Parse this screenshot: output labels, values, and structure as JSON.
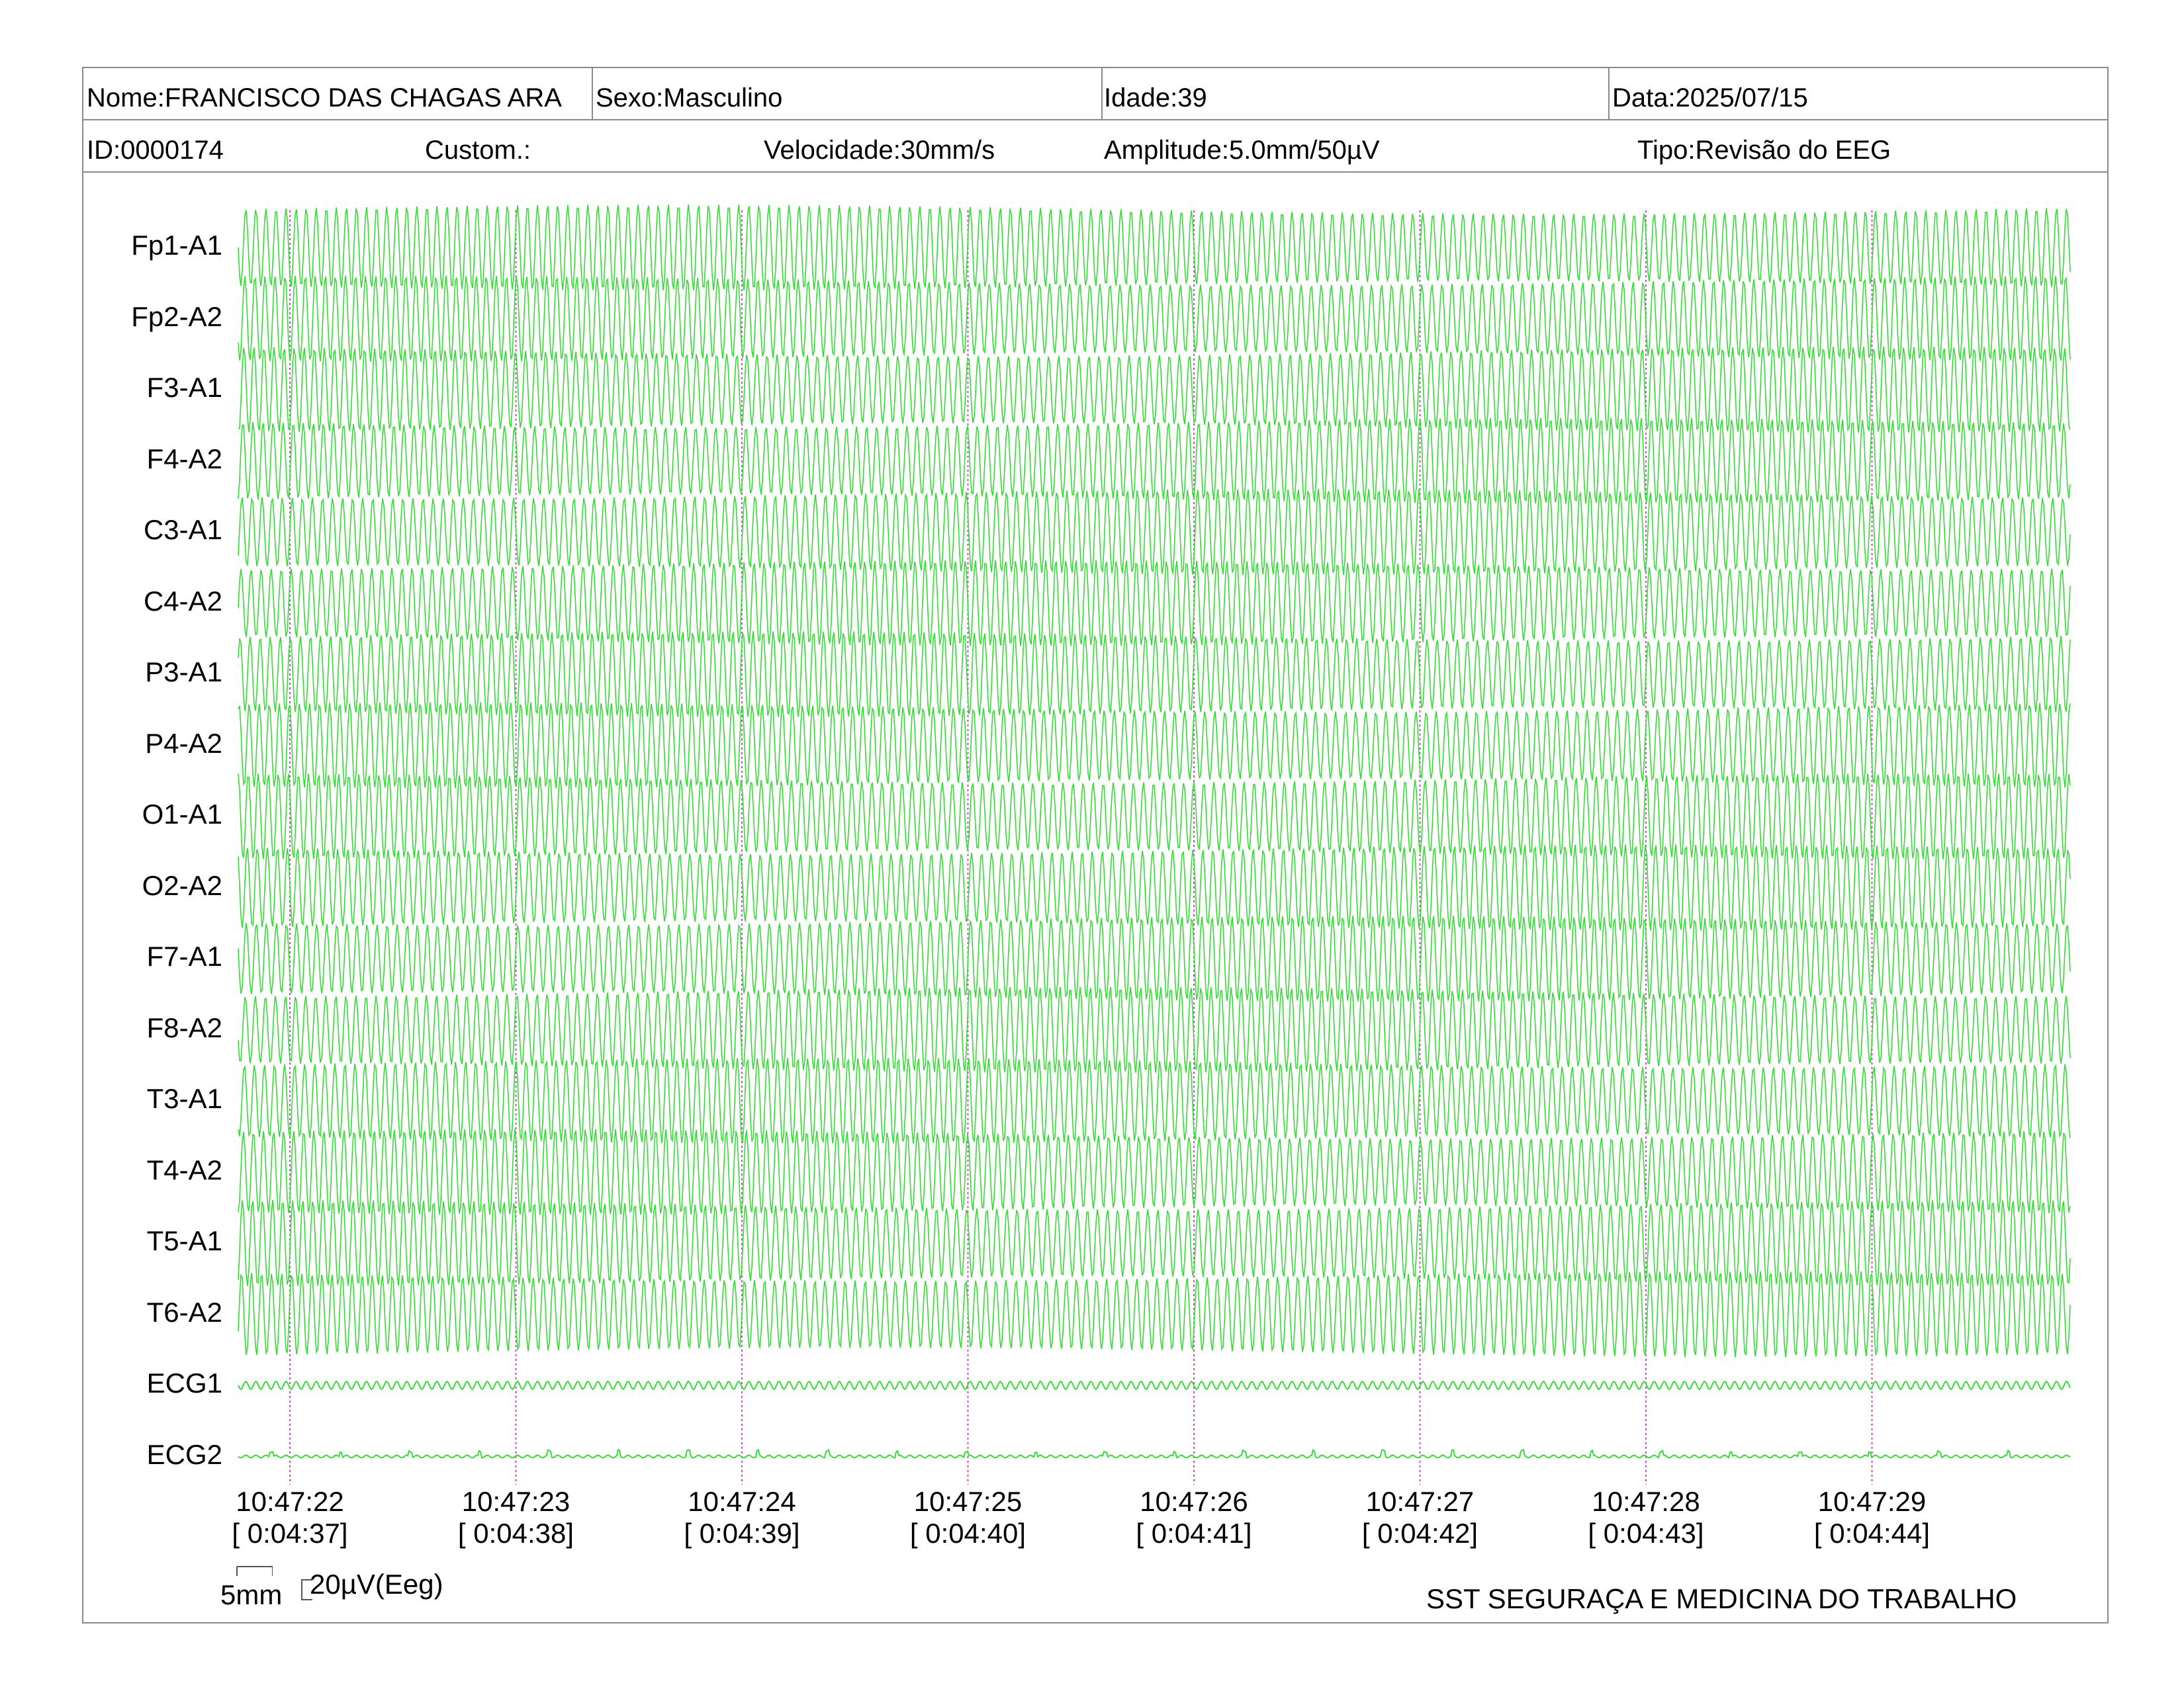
{
  "header": {
    "row1": {
      "nome": "Nome:FRANCISCO DAS CHAGAS ARA",
      "sexo": "Sexo:Masculino",
      "idade": "Idade:39",
      "data": "Data:2025/07/15"
    },
    "row2": {
      "id": "ID:0000174",
      "custom": "Custom.:",
      "velocidade": "Velocidade:30mm/s",
      "amplitude": "Amplitude:5.0mm/50µV",
      "tipo": "Tipo:Revisão do EEG"
    }
  },
  "channels": [
    "Fp1-A1",
    "Fp2-A2",
    "F3-A1",
    "F4-A2",
    "C3-A1",
    "C4-A2",
    "P3-A1",
    "P4-A2",
    "O1-A1",
    "O2-A2",
    "F7-A1",
    "F8-A2",
    "T3-A1",
    "T4-A2",
    "T5-A1",
    "T6-A2",
    "ECG1",
    "ECG2"
  ],
  "time_markers": [
    {
      "clock": "10:47:22",
      "elapsed": "[ 0:04:37]"
    },
    {
      "clock": "10:47:23",
      "elapsed": "[ 0:04:38]"
    },
    {
      "clock": "10:47:24",
      "elapsed": "[ 0:04:39]"
    },
    {
      "clock": "10:47:25",
      "elapsed": "[ 0:04:40]"
    },
    {
      "clock": "10:47:26",
      "elapsed": "[ 0:04:41]"
    },
    {
      "clock": "10:47:27",
      "elapsed": "[ 0:04:42]"
    },
    {
      "clock": "10:47:28",
      "elapsed": "[ 0:04:43]"
    },
    {
      "clock": "10:47:29",
      "elapsed": "[ 0:04:44]"
    }
  ],
  "scale": {
    "time_label": "5mm",
    "amplitude_label": "20µV(Eeg)"
  },
  "footer": {
    "company": "SST SEGURAÇA E MEDICINA DO TRABALHO"
  },
  "colors": {
    "trace": "#33dd33",
    "marker": "#cc44cc",
    "border": "#8a8a8a"
  }
}
